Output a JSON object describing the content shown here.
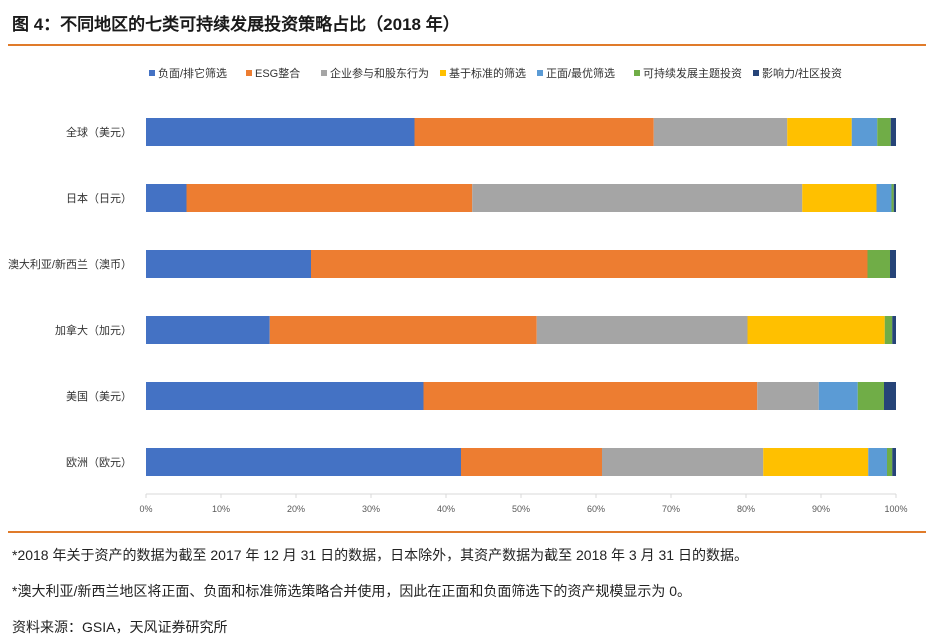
{
  "title": "图 4：不同地区的七类可持续发展投资策略占比（2018 年）",
  "notes": {
    "note1": "*2018 年关于资产的数据为截至 2017 年 12 月 31 日的数据，日本除外，其资产数据为截至 2018 年 3 月 31 日的数据。",
    "note2": "*澳大利亚/新西兰地区将正面、负面和标准筛选策略合并使用，因此在正面和负面筛选下的资产规模显示为 0。",
    "source": "资料来源：GSIA，天风证券研究所"
  },
  "chart_data": {
    "type": "bar",
    "orientation": "horizontal",
    "stacked": true,
    "categories": [
      "全球（美元）",
      "日本（日元）",
      "澳大利亚/新西兰（澳币）",
      "加拿大（加元）",
      "美国（美元）",
      "欧洲（欧元）"
    ],
    "series": [
      {
        "name": "负面/排它筛选",
        "color": "#4472c4",
        "values": [
          35.8,
          5.4,
          22.0,
          16.5,
          37.0,
          42.0
        ]
      },
      {
        "name": "ESG整合",
        "color": "#ed7d31",
        "values": [
          31.9,
          38.1,
          74.2,
          35.6,
          44.5,
          18.8
        ]
      },
      {
        "name": "企业参与和股东行为",
        "color": "#a5a5a5",
        "values": [
          17.8,
          44.0,
          0.0,
          28.1,
          8.2,
          21.5
        ]
      },
      {
        "name": "基于标准的筛选",
        "color": "#ffc000",
        "values": [
          8.6,
          9.9,
          0.0,
          18.3,
          0.0,
          14.0
        ]
      },
      {
        "name": "正面/最优筛选",
        "color": "#5b9bd5",
        "values": [
          3.4,
          2.0,
          0.0,
          0.0,
          5.2,
          2.5
        ]
      },
      {
        "name": "可持续发展主题投资",
        "color": "#70ad47",
        "values": [
          1.8,
          0.3,
          3.0,
          1.0,
          3.5,
          0.7
        ]
      },
      {
        "name": "影响力/社区投资",
        "color": "#264478",
        "values": [
          0.7,
          0.3,
          0.8,
          0.5,
          1.6,
          0.5
        ]
      }
    ],
    "xlim": [
      0,
      100
    ],
    "xticks": [
      "0%",
      "10%",
      "20%",
      "30%",
      "40%",
      "50%",
      "60%",
      "70%",
      "80%",
      "90%",
      "100%"
    ],
    "legend_position": "top",
    "grid": false
  }
}
